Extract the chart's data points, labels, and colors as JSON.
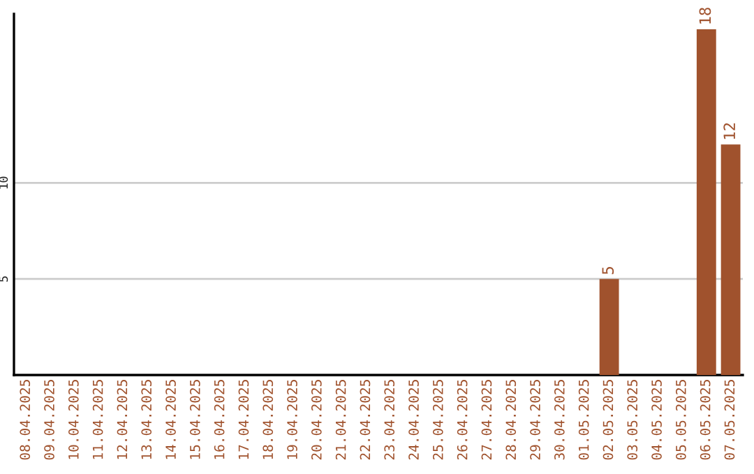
{
  "chart_data": {
    "type": "bar",
    "categories": [
      "08.04.2025",
      "09.04.2025",
      "10.04.2025",
      "11.04.2025",
      "12.04.2025",
      "13.04.2025",
      "14.04.2025",
      "15.04.2025",
      "16.04.2025",
      "17.04.2025",
      "18.04.2025",
      "19.04.2025",
      "20.04.2025",
      "21.04.2025",
      "22.04.2025",
      "23.04.2025",
      "24.04.2025",
      "25.04.2025",
      "26.04.2025",
      "27.04.2025",
      "28.04.2025",
      "29.04.2025",
      "30.04.2025",
      "01.05.2025",
      "02.05.2025",
      "03.05.2025",
      "04.05.2025",
      "05.05.2025",
      "06.05.2025",
      "07.05.2025"
    ],
    "values": [
      0,
      0,
      0,
      0,
      0,
      0,
      0,
      0,
      0,
      0,
      0,
      0,
      0,
      0,
      0,
      0,
      0,
      0,
      0,
      0,
      0,
      0,
      0,
      0,
      5,
      0,
      0,
      0,
      18,
      12
    ],
    "value_labels": [
      null,
      null,
      null,
      null,
      null,
      null,
      null,
      null,
      null,
      null,
      null,
      null,
      null,
      null,
      null,
      null,
      null,
      null,
      null,
      null,
      null,
      null,
      null,
      null,
      "5",
      null,
      null,
      null,
      "18",
      "12"
    ],
    "color": "#a0522d",
    "ylim": [
      0,
      18.8
    ],
    "yticks": [
      5,
      10
    ],
    "grid": "y",
    "legend": false
  }
}
